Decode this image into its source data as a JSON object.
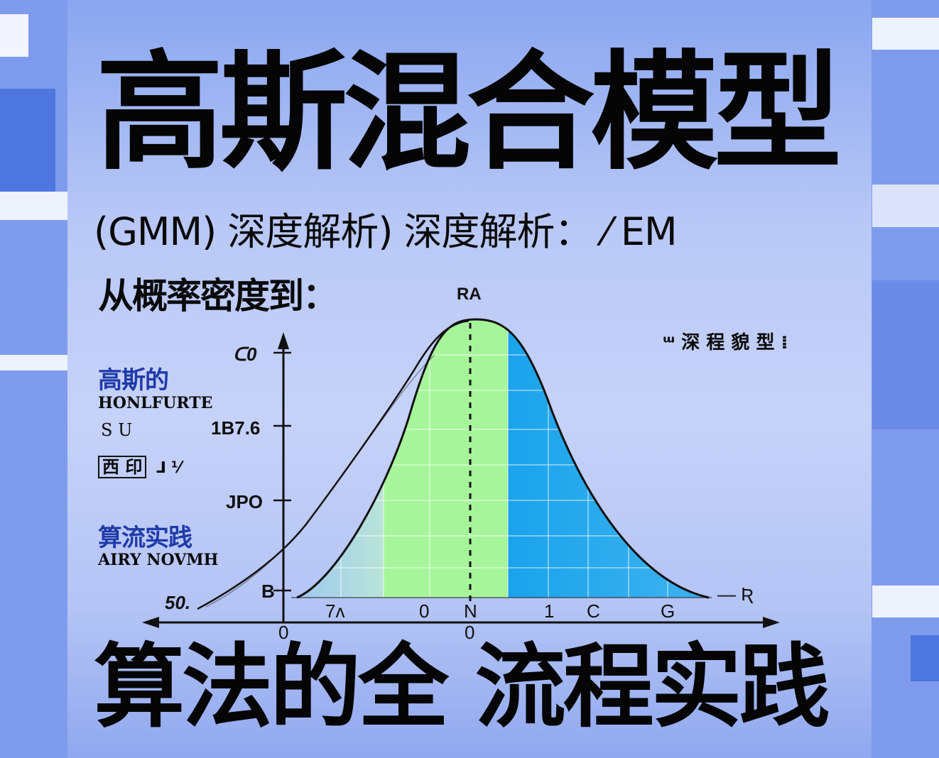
{
  "title": "高斯混合模型",
  "subtitle": "(GMM) 深度解析) 深度解析： ⁄ EM",
  "from_line": "从概率密度到：",
  "bottom_title": "算法的全 流程实践",
  "chart_label_top": "RA",
  "right_note": "ᵚ 深 程 貌 型 ⁞",
  "left_panel": {
    "block1_cn": "高斯的",
    "block1_en": "HONLFURTE",
    "item_su": "S U",
    "item_box": "西 印",
    "item_box_tail": "⅃ ⅟",
    "block2_cn": "算流实践",
    "block2_en": "AIRY NOVMH"
  },
  "colors": {
    "background": "#7f9cec",
    "green_band": "#a6f59a",
    "blue_band": "#1ea7ec",
    "light_blue": "#b5d6f2",
    "ink": "#0a0a0a"
  },
  "chart_data": {
    "type": "area",
    "y_ticks": [
      "ᑕ0",
      "1B7.6",
      "JPO",
      "B"
    ],
    "y_axis_left_label": "50.",
    "x_ticks_upper": [
      "7ʌ",
      "0",
      "N",
      "1",
      "C",
      "G"
    ],
    "x_ticks_lower": [
      "0",
      "0"
    ],
    "right_end_label": "— Ʀ"
  }
}
